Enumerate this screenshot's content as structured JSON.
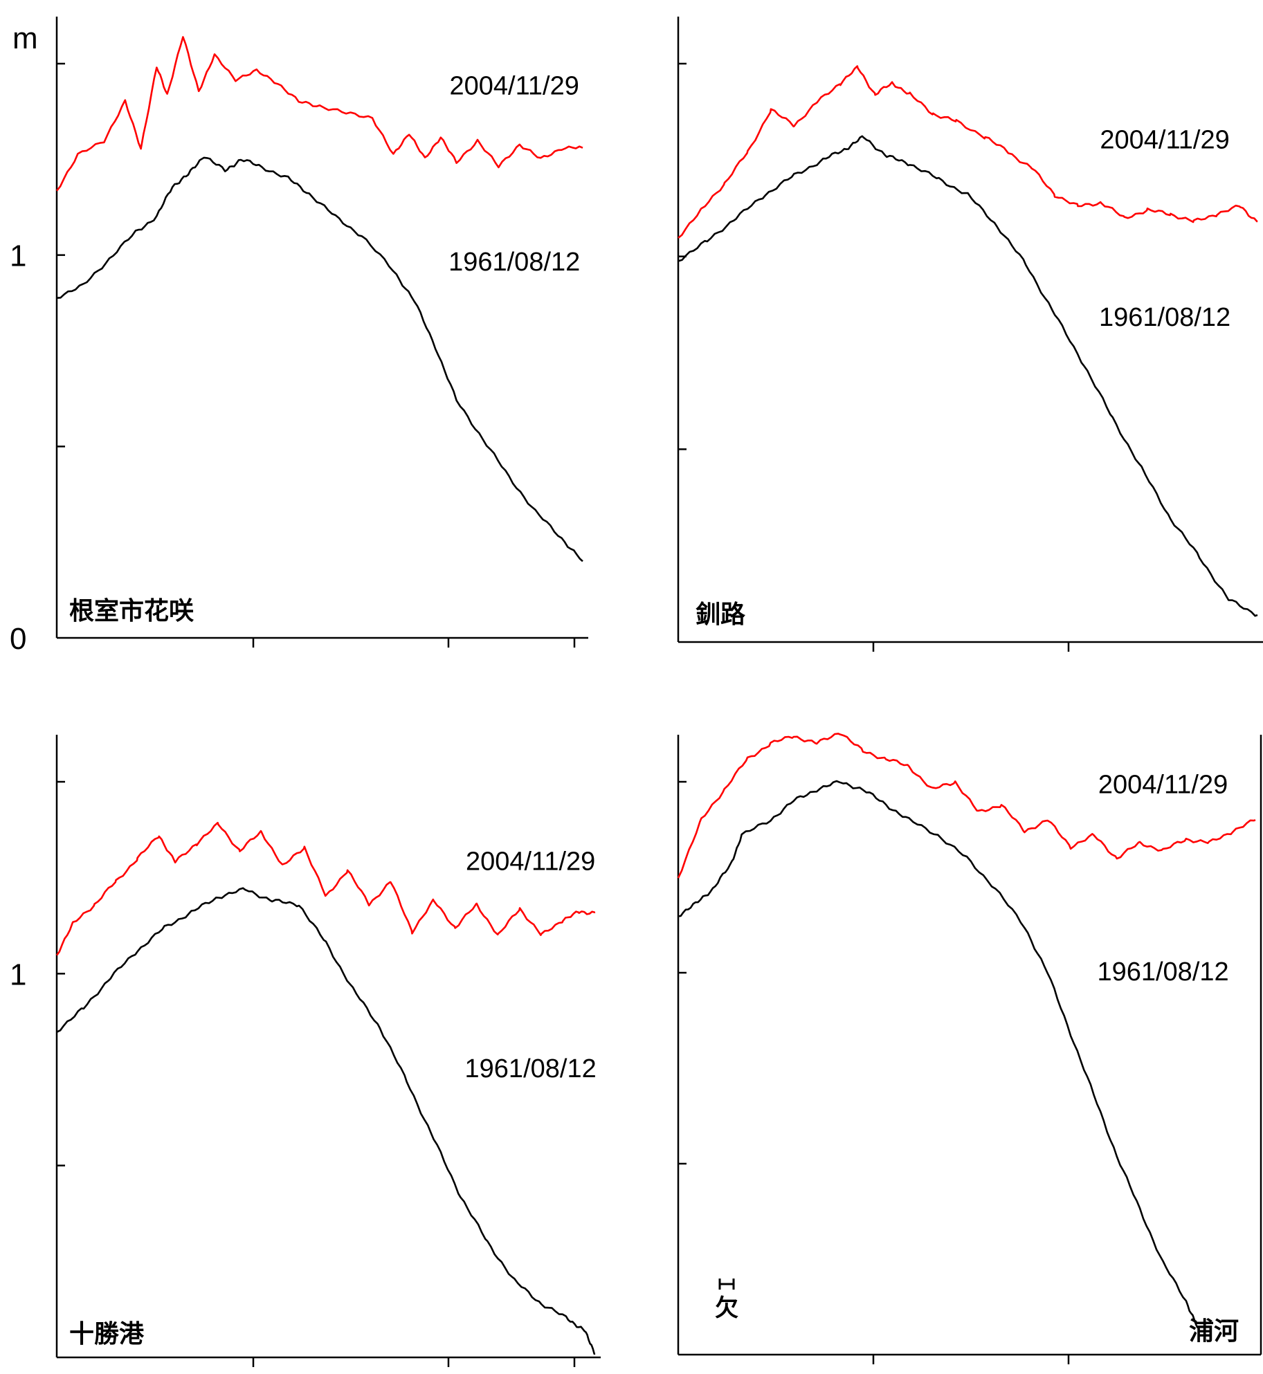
{
  "y_unit": "m",
  "chart_data": [
    {
      "type": "line",
      "station": "根室市花咲",
      "xlabel": "",
      "ylabel": "m",
      "ylim": [
        0,
        1.5
      ],
      "y_ticks": [
        0,
        0.5,
        1,
        1.5
      ],
      "y_tick_labels_shown": [
        "0",
        "1"
      ],
      "grid": false,
      "series": [
        {
          "name": "2004/11/29",
          "color": "#ff0000",
          "label_anchor": [
            0.87,
            1.42
          ],
          "x": [
            0,
            0.04,
            0.09,
            0.13,
            0.16,
            0.19,
            0.21,
            0.24,
            0.27,
            0.3,
            0.34,
            0.38,
            0.42,
            0.46,
            0.5,
            0.55,
            0.6,
            0.64,
            0.67,
            0.7,
            0.73,
            0.76,
            0.8,
            0.84,
            0.88,
            0.92,
            0.96,
            1.0
          ],
          "y": [
            1.17,
            1.26,
            1.3,
            1.4,
            1.28,
            1.49,
            1.42,
            1.57,
            1.43,
            1.52,
            1.46,
            1.48,
            1.45,
            1.4,
            1.39,
            1.37,
            1.36,
            1.26,
            1.32,
            1.25,
            1.31,
            1.24,
            1.3,
            1.23,
            1.29,
            1.25,
            1.28,
            1.28
          ]
        },
        {
          "name": "1961/08/12",
          "color": "#000000",
          "label_anchor": [
            0.87,
            0.96
          ],
          "x": [
            0,
            0.05,
            0.1,
            0.15,
            0.19,
            0.22,
            0.25,
            0.28,
            0.32,
            0.35,
            0.39,
            0.44,
            0.48,
            0.53,
            0.58,
            0.64,
            0.68,
            0.72,
            0.76,
            0.81,
            0.86,
            0.91,
            0.96,
            1.0
          ],
          "y": [
            0.89,
            0.92,
            0.99,
            1.06,
            1.1,
            1.18,
            1.21,
            1.26,
            1.22,
            1.25,
            1.23,
            1.2,
            1.16,
            1.1,
            1.05,
            0.96,
            0.88,
            0.76,
            0.62,
            0.52,
            0.42,
            0.33,
            0.26,
            0.2
          ]
        }
      ]
    },
    {
      "type": "line",
      "station": "釧路",
      "xlabel": "",
      "ylabel": "m",
      "ylim": [
        0,
        1.5
      ],
      "y_ticks": [
        0,
        0.5,
        1,
        1.5
      ],
      "y_tick_labels_shown": [],
      "grid": false,
      "series": [
        {
          "name": "2004/11/29",
          "color": "#ff0000",
          "label_anchor": [
            0.84,
            1.28
          ],
          "x": [
            0,
            0.04,
            0.08,
            0.12,
            0.16,
            0.2,
            0.24,
            0.28,
            0.31,
            0.34,
            0.37,
            0.4,
            0.44,
            0.48,
            0.53,
            0.57,
            0.61,
            0.65,
            0.69,
            0.73,
            0.77,
            0.81,
            0.85,
            0.89,
            0.93,
            0.97,
            1.0
          ],
          "y": [
            1.05,
            1.12,
            1.19,
            1.27,
            1.38,
            1.34,
            1.4,
            1.45,
            1.49,
            1.42,
            1.45,
            1.42,
            1.37,
            1.35,
            1.31,
            1.27,
            1.23,
            1.16,
            1.13,
            1.14,
            1.1,
            1.12,
            1.11,
            1.09,
            1.11,
            1.13,
            1.09
          ]
        },
        {
          "name": "1961/08/12",
          "color": "#000000",
          "label_anchor": [
            0.84,
            0.82
          ],
          "x": [
            0,
            0.05,
            0.1,
            0.15,
            0.2,
            0.25,
            0.29,
            0.32,
            0.36,
            0.4,
            0.45,
            0.5,
            0.55,
            0.6,
            0.65,
            0.7,
            0.75,
            0.8,
            0.85,
            0.9,
            0.95,
            1.0
          ],
          "y": [
            0.99,
            1.04,
            1.1,
            1.16,
            1.21,
            1.25,
            1.28,
            1.31,
            1.26,
            1.24,
            1.2,
            1.16,
            1.08,
            0.98,
            0.85,
            0.72,
            0.58,
            0.45,
            0.32,
            0.22,
            0.11,
            0.07
          ]
        }
      ]
    },
    {
      "type": "line",
      "station": "十勝港",
      "xlabel": "",
      "ylabel": "m",
      "ylim": [
        0,
        1.5
      ],
      "y_ticks": [
        0,
        0.5,
        1,
        1.5
      ],
      "y_tick_labels_shown": [
        "1"
      ],
      "grid": false,
      "series": [
        {
          "name": "2004/11/29",
          "color": "#ff0000",
          "label_anchor": [
            0.88,
            1.27
          ],
          "x": [
            0,
            0.03,
            0.07,
            0.11,
            0.15,
            0.19,
            0.22,
            0.26,
            0.3,
            0.34,
            0.38,
            0.42,
            0.46,
            0.5,
            0.54,
            0.58,
            0.62,
            0.66,
            0.7,
            0.74,
            0.78,
            0.82,
            0.86,
            0.9,
            0.94,
            0.97,
            1.0
          ],
          "y": [
            1.05,
            1.13,
            1.18,
            1.24,
            1.3,
            1.36,
            1.29,
            1.34,
            1.39,
            1.32,
            1.37,
            1.28,
            1.33,
            1.2,
            1.27,
            1.18,
            1.24,
            1.11,
            1.19,
            1.12,
            1.18,
            1.1,
            1.17,
            1.1,
            1.14,
            1.16,
            1.16
          ]
        },
        {
          "name": "1961/08/12",
          "color": "#000000",
          "label_anchor": [
            0.88,
            0.73
          ],
          "x": [
            0,
            0.05,
            0.1,
            0.15,
            0.2,
            0.25,
            0.3,
            0.35,
            0.4,
            0.45,
            0.5,
            0.55,
            0.6,
            0.65,
            0.7,
            0.75,
            0.8,
            0.85,
            0.9,
            0.95,
            0.98,
            1.0
          ],
          "y": [
            0.85,
            0.91,
            0.99,
            1.06,
            1.12,
            1.16,
            1.2,
            1.22,
            1.19,
            1.18,
            1.08,
            0.96,
            0.86,
            0.72,
            0.57,
            0.42,
            0.3,
            0.2,
            0.14,
            0.1,
            0.07,
            0.01
          ]
        }
      ]
    },
    {
      "type": "line",
      "station": "浦河",
      "missing_marker": "欠",
      "xlabel": "",
      "ylabel": "m",
      "ylim": [
        0,
        1.5
      ],
      "y_ticks": [
        0,
        0.5,
        1,
        1.5
      ],
      "y_tick_labels_shown": [],
      "grid": false,
      "series": [
        {
          "name": "2004/11/29",
          "color": "#ff0000",
          "label_anchor": [
            0.84,
            1.47
          ],
          "x": [
            0,
            0.04,
            0.08,
            0.12,
            0.16,
            0.2,
            0.24,
            0.28,
            0.32,
            0.36,
            0.4,
            0.44,
            0.48,
            0.52,
            0.56,
            0.6,
            0.64,
            0.68,
            0.72,
            0.76,
            0.8,
            0.84,
            0.88,
            0.92,
            0.96,
            1.0
          ],
          "y": [
            1.25,
            1.4,
            1.48,
            1.56,
            1.6,
            1.62,
            1.6,
            1.63,
            1.58,
            1.56,
            1.54,
            1.48,
            1.5,
            1.42,
            1.44,
            1.37,
            1.4,
            1.33,
            1.36,
            1.3,
            1.34,
            1.32,
            1.35,
            1.34,
            1.37,
            1.4
          ]
        },
        {
          "name": "1961/08/12",
          "color": "#000000",
          "label_anchor": [
            0.84,
            0.98
          ],
          "x": [
            0,
            0.03,
            0.06,
            0.09,
            0.11,
            0.16,
            0.2,
            0.24,
            0.28,
            0.32,
            0.36,
            0.4,
            0.45,
            0.5,
            0.55,
            0.6,
            0.64,
            0.68,
            0.72,
            0.76,
            0.8,
            0.84,
            0.88,
            0.9
          ],
          "y": [
            1.15,
            1.18,
            1.22,
            1.28,
            1.36,
            1.4,
            1.45,
            1.48,
            1.5,
            1.48,
            1.44,
            1.4,
            1.36,
            1.3,
            1.22,
            1.12,
            1.0,
            0.84,
            0.68,
            0.52,
            0.38,
            0.24,
            0.14,
            0.07
          ]
        }
      ]
    }
  ]
}
